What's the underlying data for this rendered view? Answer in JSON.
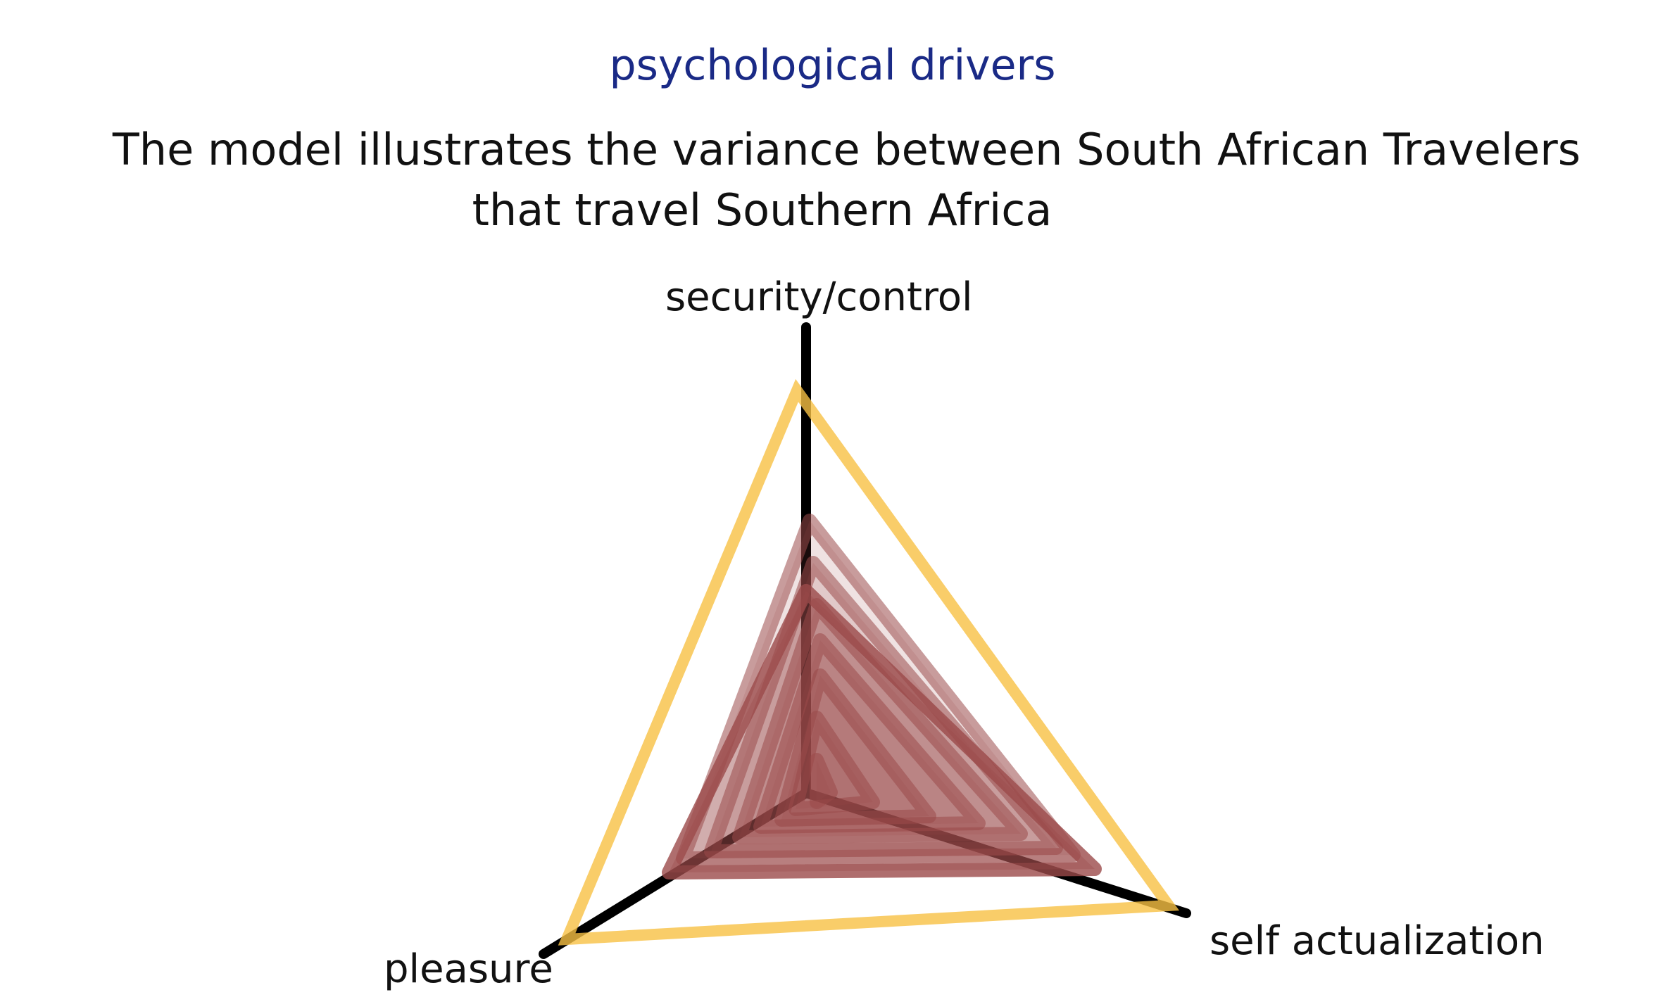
{
  "title": "psychological drivers",
  "subtitle_line1": "The model illustrates the variance between South African Travelers",
  "subtitle_line2": "that travel  Southern Africa",
  "axes": {
    "top": "security/control",
    "right": "self actualization",
    "left": "pleasure"
  },
  "colors": {
    "title": "#1a2a86",
    "axis": "#000000",
    "outer": "#f7c043",
    "inner": "#9b4a4a"
  }
}
